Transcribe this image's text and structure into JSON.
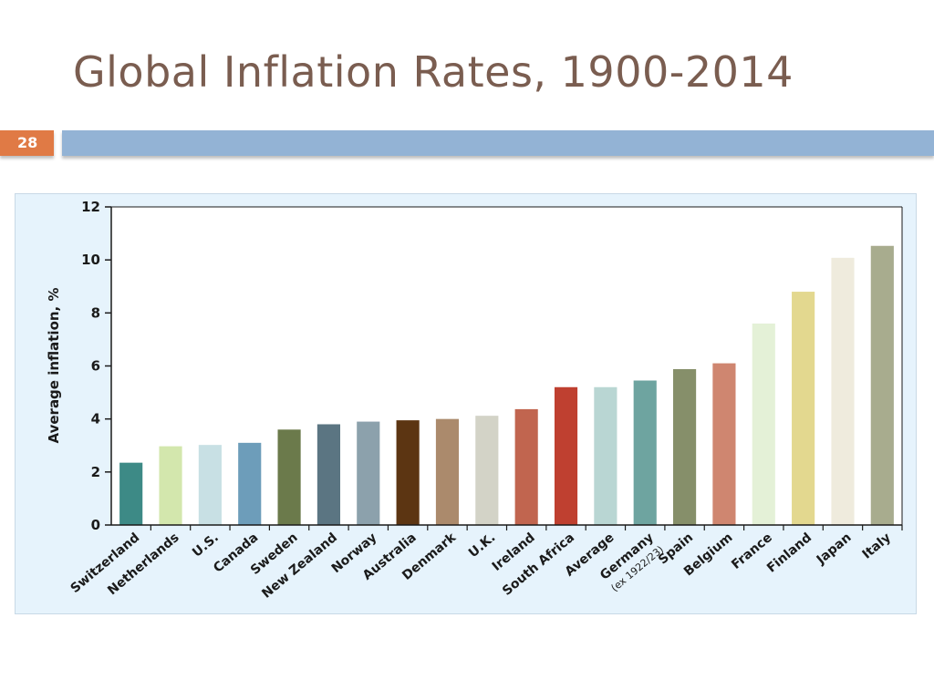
{
  "slide": {
    "title": "Global Inflation Rates, 1900-2014",
    "number": "28"
  },
  "chart_data": {
    "type": "bar",
    "title": "",
    "xlabel": "",
    "ylabel": "Average inflation, %",
    "ylim": [
      0,
      12
    ],
    "yticks": [
      0,
      2,
      4,
      6,
      8,
      10,
      12
    ],
    "grid": false,
    "legend": "none",
    "categories": [
      "Switzerland",
      "Netherlands",
      "U.S.",
      "Canada",
      "Sweden",
      "New Zealand",
      "Norway",
      "Australia",
      "Denmark",
      "U.K.",
      "Ireland",
      "South Africa",
      "Average",
      "Germany",
      "Spain",
      "Belgium",
      "France",
      "Finland",
      "Japan",
      "Italy"
    ],
    "category_notes": [
      "",
      "",
      "",
      "",
      "",
      "",
      "",
      "",
      "",
      "",
      "",
      "",
      "",
      "(ex 1922/23)",
      "",
      "",
      "",
      "",
      "",
      ""
    ],
    "values": [
      2.35,
      2.97,
      3.02,
      3.1,
      3.6,
      3.8,
      3.9,
      3.95,
      4.0,
      4.12,
      4.37,
      5.2,
      5.2,
      5.45,
      5.88,
      6.1,
      7.6,
      8.8,
      10.08,
      10.53
    ],
    "colors": [
      "#3d8a86",
      "#d3e7ad",
      "#c8e0e4",
      "#6d9dba",
      "#6b7a4b",
      "#5b7582",
      "#8ca1ac",
      "#5c3512",
      "#ab8a6c",
      "#d3d3c7",
      "#c1654f",
      "#bf4030",
      "#b9d6d3",
      "#6ea4a0",
      "#868f6a",
      "#cf8670",
      "#e4f1d7",
      "#e3d88f",
      "#efebdd",
      "#a8ac8e"
    ]
  }
}
